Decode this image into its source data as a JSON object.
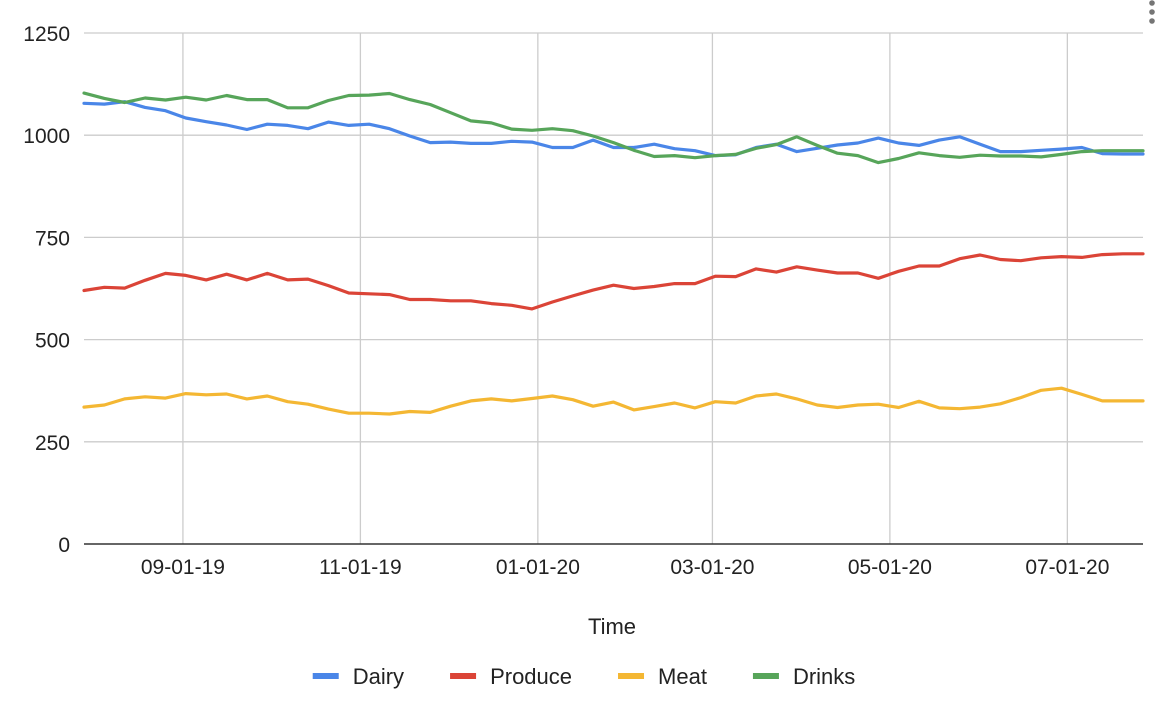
{
  "chart_data": {
    "type": "line",
    "title": "",
    "xlabel": "Time",
    "ylabel": "",
    "ylim": [
      0,
      1250
    ],
    "yticks": [
      0,
      250,
      500,
      750,
      1000,
      1250
    ],
    "xlim": [
      "2019-07-29",
      "2020-07-27"
    ],
    "xticks": [
      {
        "date": "2019-09-01",
        "label": "09-01-19"
      },
      {
        "date": "2019-11-01",
        "label": "11-01-19"
      },
      {
        "date": "2020-01-01",
        "label": "01-01-20"
      },
      {
        "date": "2020-03-01",
        "label": "03-01-20"
      },
      {
        "date": "2020-05-01",
        "label": "05-01-20"
      },
      {
        "date": "2020-07-01",
        "label": "07-01-20"
      }
    ],
    "grid": true,
    "legend_position": "bottom",
    "x": [
      "2019-07-29",
      "2019-08-05",
      "2019-08-12",
      "2019-08-19",
      "2019-08-26",
      "2019-09-02",
      "2019-09-09",
      "2019-09-16",
      "2019-09-23",
      "2019-09-30",
      "2019-10-07",
      "2019-10-14",
      "2019-10-21",
      "2019-10-28",
      "2019-11-04",
      "2019-11-11",
      "2019-11-18",
      "2019-11-25",
      "2019-12-02",
      "2019-12-09",
      "2019-12-16",
      "2019-12-23",
      "2019-12-30",
      "2020-01-06",
      "2020-01-13",
      "2020-01-20",
      "2020-01-27",
      "2020-02-03",
      "2020-02-10",
      "2020-02-17",
      "2020-02-24",
      "2020-03-02",
      "2020-03-09",
      "2020-03-16",
      "2020-03-23",
      "2020-03-30",
      "2020-04-06",
      "2020-04-13",
      "2020-04-20",
      "2020-04-27",
      "2020-05-04",
      "2020-05-11",
      "2020-05-18",
      "2020-05-25",
      "2020-06-01",
      "2020-06-08",
      "2020-06-15",
      "2020-06-22",
      "2020-06-29",
      "2020-07-06",
      "2020-07-13",
      "2020-07-20",
      "2020-07-27"
    ],
    "series": [
      {
        "name": "Dairy",
        "color": "#4a86e8",
        "values": [
          1078,
          1076,
          1082,
          1068,
          1060,
          1042,
          1033,
          1025,
          1014,
          1027,
          1024,
          1016,
          1032,
          1024,
          1027,
          1016,
          998,
          982,
          983,
          980,
          980,
          985,
          983,
          970,
          970,
          988,
          970,
          970,
          978,
          967,
          962,
          950,
          952,
          970,
          978,
          960,
          968,
          976,
          981,
          993,
          981,
          975,
          988,
          996,
          978,
          960,
          960,
          963,
          966,
          970,
          955,
          954,
          954
        ]
      },
      {
        "name": "Produce",
        "color": "#db4437",
        "values": [
          620,
          628,
          626,
          645,
          662,
          657,
          646,
          660,
          646,
          662,
          646,
          648,
          632,
          614,
          612,
          610,
          598,
          598,
          595,
          595,
          588,
          584,
          575,
          592,
          607,
          621,
          633,
          625,
          630,
          637,
          637,
          655,
          654,
          673,
          665,
          678,
          670,
          663,
          663,
          650,
          667,
          680,
          680,
          698,
          707,
          696,
          693,
          700,
          703,
          701,
          708,
          710,
          710
        ]
      },
      {
        "name": "Meat",
        "color": "#f4b733",
        "values": [
          335,
          340,
          355,
          360,
          357,
          368,
          365,
          367,
          355,
          362,
          348,
          342,
          330,
          320,
          320,
          318,
          324,
          322,
          337,
          350,
          355,
          350,
          356,
          362,
          353,
          337,
          347,
          328,
          336,
          345,
          333,
          348,
          345,
          362,
          367,
          355,
          340,
          334,
          340,
          342,
          334,
          349,
          333,
          331,
          335,
          343,
          358,
          376,
          381,
          366,
          350,
          350,
          350
        ]
      },
      {
        "name": "Drinks",
        "color": "#57a55a",
        "values": [
          1103,
          1090,
          1080,
          1091,
          1086,
          1093,
          1086,
          1097,
          1087,
          1087,
          1067,
          1067,
          1085,
          1097,
          1098,
          1102,
          1087,
          1075,
          1055,
          1035,
          1030,
          1015,
          1012,
          1016,
          1011,
          998,
          982,
          963,
          948,
          950,
          945,
          950,
          953,
          968,
          977,
          996,
          975,
          956,
          950,
          933,
          943,
          957,
          950,
          946,
          951,
          949,
          949,
          947,
          953,
          960,
          962,
          962,
          962
        ]
      }
    ]
  }
}
